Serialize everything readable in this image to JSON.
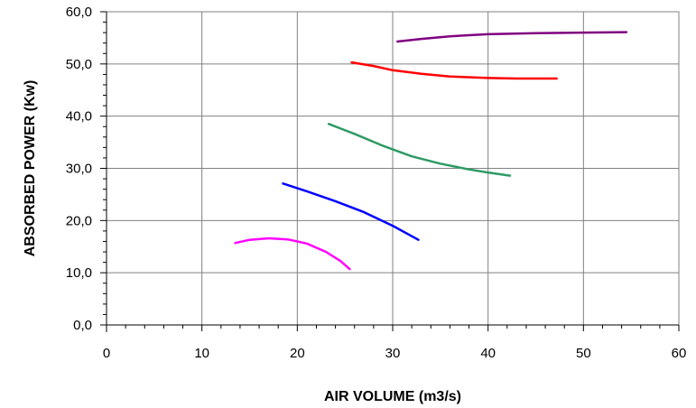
{
  "chart_data": {
    "type": "line",
    "title": "",
    "xlabel": "AIR VOLUME (m3/s)",
    "ylabel": "ABSORBED POWER (Kw)",
    "xlim": [
      0,
      60
    ],
    "ylim": [
      0,
      60
    ],
    "x_ticks": [
      0,
      10,
      20,
      30,
      40,
      50,
      60
    ],
    "x_tick_labels": [
      "0",
      "10",
      "20",
      "30",
      "40",
      "50",
      "60"
    ],
    "y_ticks": [
      0,
      10,
      20,
      30,
      40,
      50,
      60
    ],
    "y_tick_labels": [
      "0,0",
      "10,0",
      "20,0",
      "30,0",
      "40,0",
      "50,0",
      "60,0"
    ],
    "grid": true,
    "legend": "none",
    "series": [
      {
        "color": "#ff00ff",
        "points": [
          [
            13.5,
            15.7
          ],
          [
            15.0,
            16.3
          ],
          [
            17.0,
            16.6
          ],
          [
            19.0,
            16.4
          ],
          [
            21.0,
            15.6
          ],
          [
            23.0,
            14.0
          ],
          [
            24.5,
            12.3
          ],
          [
            25.5,
            10.7
          ]
        ]
      },
      {
        "color": "#0000ff",
        "points": [
          [
            18.5,
            27.1
          ],
          [
            21.0,
            25.6
          ],
          [
            24.0,
            23.7
          ],
          [
            27.0,
            21.6
          ],
          [
            30.0,
            19.0
          ],
          [
            32.7,
            16.3
          ]
        ]
      },
      {
        "color": "#2e9a64",
        "points": [
          [
            23.3,
            38.5
          ],
          [
            26.0,
            36.6
          ],
          [
            29.0,
            34.3
          ],
          [
            32.0,
            32.3
          ],
          [
            35.0,
            30.9
          ],
          [
            38.0,
            29.8
          ],
          [
            40.0,
            29.2
          ],
          [
            42.3,
            28.6
          ]
        ]
      },
      {
        "color": "#ff0000",
        "points": [
          [
            25.7,
            50.3
          ],
          [
            28.0,
            49.6
          ],
          [
            30.0,
            48.8
          ],
          [
            33.0,
            48.1
          ],
          [
            36.0,
            47.6
          ],
          [
            40.0,
            47.3
          ],
          [
            43.0,
            47.2
          ],
          [
            47.2,
            47.2
          ]
        ]
      },
      {
        "color": "#800080",
        "points": [
          [
            30.5,
            54.3
          ],
          [
            33.0,
            54.8
          ],
          [
            36.0,
            55.3
          ],
          [
            40.0,
            55.7
          ],
          [
            45.0,
            55.9
          ],
          [
            50.0,
            56.0
          ],
          [
            54.5,
            56.1
          ]
        ]
      }
    ]
  }
}
